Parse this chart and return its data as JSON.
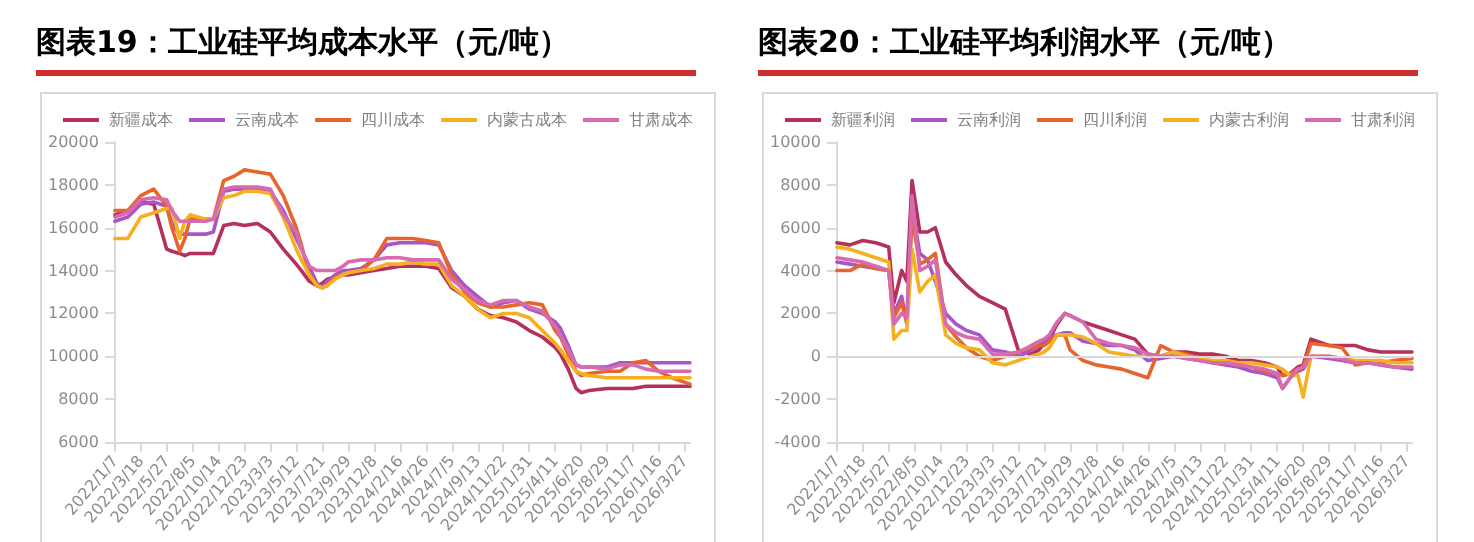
{
  "chart_data": [
    {
      "type": "line",
      "title": "图表19：工业硅平均成本水平（元/吨）",
      "legend": "top",
      "grid": false,
      "marker": "none",
      "line_style": "solid",
      "x": [
        "2022-01-07",
        "2022-02-11",
        "2022-03-18",
        "2022-04-22",
        "2022-05-27",
        "2022-06-10",
        "2022-07-01",
        "2022-07-15",
        "2022-07-29",
        "2022-08-19",
        "2022-09-09",
        "2022-09-30",
        "2022-10-28",
        "2022-11-25",
        "2022-12-23",
        "2023-01-27",
        "2023-03-03",
        "2023-04-07",
        "2023-05-12",
        "2023-05-26",
        "2023-06-16",
        "2023-07-07",
        "2023-07-21",
        "2023-08-04",
        "2023-08-25",
        "2023-09-15",
        "2023-09-29",
        "2023-11-03",
        "2023-12-08",
        "2024-01-12",
        "2024-02-16",
        "2024-03-22",
        "2024-04-26",
        "2024-05-31",
        "2024-07-05",
        "2024-08-09",
        "2024-09-13",
        "2024-10-18",
        "2024-11-22",
        "2024-12-27",
        "2025-01-31",
        "2025-03-07",
        "2025-04-11",
        "2025-04-25",
        "2025-05-16",
        "2025-06-06",
        "2025-06-20",
        "2025-07-11",
        "2025-08-29",
        "2025-10-03",
        "2025-11-07",
        "2025-12-12",
        "2026-01-16",
        "2026-02-20",
        "2026-04-10"
      ],
      "xlim": [
        "2022-01-07",
        "2026-04-10"
      ],
      "xticks": [
        {
          "value": "2022-01-07",
          "label": "2022/1/7"
        },
        {
          "value": "2022-03-18",
          "label": "2022/3/18"
        },
        {
          "value": "2022-05-27",
          "label": "2022/5/27"
        },
        {
          "value": "2022-08-05",
          "label": "2022/8/5"
        },
        {
          "value": "2022-10-14",
          "label": "2022/10/14"
        },
        {
          "value": "2022-12-23",
          "label": "2022/12/23"
        },
        {
          "value": "2023-03-03",
          "label": "2023/3/3"
        },
        {
          "value": "2023-05-12",
          "label": "2023/5/12"
        },
        {
          "value": "2023-07-21",
          "label": "2023/7/21"
        },
        {
          "value": "2023-09-29",
          "label": "2023/9/29"
        },
        {
          "value": "2023-12-08",
          "label": "2023/12/8"
        },
        {
          "value": "2024-02-16",
          "label": "2024/2/16"
        },
        {
          "value": "2024-04-26",
          "label": "2024/4/26"
        },
        {
          "value": "2024-07-05",
          "label": "2024/7/5"
        },
        {
          "value": "2024-09-13",
          "label": "2024/9/13"
        },
        {
          "value": "2024-11-22",
          "label": "2024/11/22"
        },
        {
          "value": "2025-01-31",
          "label": "2025/1/31"
        },
        {
          "value": "2025-04-11",
          "label": "2025/4/11"
        },
        {
          "value": "2025-06-20",
          "label": "2025/6/20"
        },
        {
          "value": "2025-08-29",
          "label": "2025/8/29"
        },
        {
          "value": "2025-11-07",
          "label": "2025/11/7"
        },
        {
          "value": "2026-01-16",
          "label": "2026/1/16"
        },
        {
          "value": "2026-03-27",
          "label": "2026/3/27"
        }
      ],
      "ylim": [
        6000,
        20000
      ],
      "yticks": [
        6000,
        8000,
        10000,
        12000,
        14000,
        16000,
        18000,
        20000
      ],
      "series": [
        {
          "name": "新疆成本",
          "color": "#b5305a",
          "values": [
            16600,
            16800,
            17200,
            17100,
            15000,
            14900,
            14800,
            14700,
            14800,
            14800,
            14800,
            14800,
            16100,
            16200,
            16100,
            16200,
            15800,
            15000,
            14300,
            14000,
            13500,
            13300,
            13400,
            13600,
            13700,
            13800,
            13800,
            13900,
            14000,
            14100,
            14200,
            14200,
            14200,
            14100,
            13200,
            12800,
            12200,
            11900,
            11800,
            11600,
            11200,
            10900,
            10400,
            10100,
            9400,
            8500,
            8300,
            8400,
            8500,
            8500,
            8500,
            8600,
            8600,
            8600,
            8600
          ]
        },
        {
          "name": "云南成本",
          "color": "#a855c8",
          "values": [
            16300,
            16500,
            17100,
            17200,
            17000,
            16200,
            15700,
            15700,
            15700,
            15700,
            15700,
            15800,
            17700,
            17800,
            17800,
            17800,
            17700,
            16800,
            15500,
            15000,
            14200,
            13400,
            13200,
            13500,
            13800,
            14000,
            14000,
            14100,
            14500,
            15200,
            15300,
            15300,
            15300,
            15200,
            14000,
            13300,
            12800,
            12300,
            12500,
            12600,
            12200,
            12000,
            11600,
            11300,
            10500,
            9600,
            9500,
            9500,
            9500,
            9700,
            9700,
            9700,
            9700,
            9700,
            9700
          ]
        },
        {
          "name": "四川成本",
          "color": "#e8642a",
          "values": [
            16800,
            16800,
            17500,
            17800,
            17000,
            16000,
            14900,
            15500,
            16400,
            16400,
            16400,
            16400,
            18200,
            18400,
            18700,
            18600,
            18500,
            17500,
            16000,
            15200,
            13800,
            13300,
            13200,
            13300,
            13700,
            13800,
            13900,
            14000,
            14500,
            15500,
            15500,
            15500,
            15400,
            15300,
            13800,
            13000,
            12500,
            12300,
            12300,
            12400,
            12500,
            12400,
            11200,
            10900,
            10100,
            9300,
            9100,
            9200,
            9300,
            9300,
            9700,
            9800,
            9300,
            9000,
            8700
          ]
        },
        {
          "name": "内蒙古成本",
          "color": "#f5b021",
          "values": [
            15500,
            15500,
            16500,
            16700,
            16900,
            16900,
            15500,
            16300,
            16600,
            16500,
            16400,
            16400,
            17400,
            17500,
            17700,
            17700,
            17600,
            16500,
            15000,
            14500,
            13800,
            13300,
            13200,
            13300,
            13600,
            13800,
            13900,
            14000,
            14100,
            14300,
            14300,
            14400,
            14300,
            14300,
            13300,
            12800,
            12200,
            11800,
            12000,
            12000,
            11800,
            11200,
            10600,
            10300,
            9800,
            9300,
            9200,
            9100,
            9000,
            9000,
            9000,
            9000,
            9000,
            9000,
            9000
          ]
        },
        {
          "name": "甘肃成本",
          "color": "#d76bb0",
          "values": [
            16500,
            16700,
            17300,
            17400,
            17300,
            16800,
            16300,
            16300,
            16300,
            16300,
            16300,
            16400,
            17800,
            17900,
            17900,
            17900,
            17800,
            16600,
            15800,
            15000,
            14200,
            14000,
            14000,
            14000,
            14000,
            14200,
            14400,
            14500,
            14500,
            14600,
            14600,
            14500,
            14500,
            14500,
            13600,
            13100,
            12600,
            12400,
            12600,
            12600,
            12300,
            12100,
            11400,
            11000,
            10300,
            9600,
            9500,
            9500,
            9400,
            9600,
            9600,
            9400,
            9300,
            9300,
            9300
          ]
        }
      ]
    },
    {
      "type": "line",
      "title": "图表20：工业硅平均利润水平（元/吨）",
      "legend": "top",
      "grid": false,
      "marker": "none",
      "line_style": "solid",
      "x": [
        "2022-01-07",
        "2022-02-11",
        "2022-03-18",
        "2022-04-22",
        "2022-05-27",
        "2022-06-10",
        "2022-07-01",
        "2022-07-15",
        "2022-07-29",
        "2022-08-19",
        "2022-09-09",
        "2022-09-30",
        "2022-10-28",
        "2022-11-25",
        "2022-12-23",
        "2023-01-27",
        "2023-03-03",
        "2023-04-07",
        "2023-05-12",
        "2023-05-26",
        "2023-06-16",
        "2023-07-07",
        "2023-07-21",
        "2023-08-04",
        "2023-08-25",
        "2023-09-15",
        "2023-09-29",
        "2023-11-03",
        "2023-12-08",
        "2024-01-12",
        "2024-02-16",
        "2024-03-22",
        "2024-04-26",
        "2024-05-31",
        "2024-07-05",
        "2024-08-09",
        "2024-09-13",
        "2024-10-18",
        "2024-11-22",
        "2024-12-27",
        "2025-01-31",
        "2025-03-07",
        "2025-04-11",
        "2025-04-25",
        "2025-05-16",
        "2025-06-06",
        "2025-06-20",
        "2025-07-11",
        "2025-08-29",
        "2025-10-03",
        "2025-11-07",
        "2025-12-12",
        "2026-01-16",
        "2026-02-20",
        "2026-04-10"
      ],
      "xlim": [
        "2022-01-07",
        "2026-04-10"
      ],
      "xticks": [
        {
          "value": "2022-01-07",
          "label": "2022/1/7"
        },
        {
          "value": "2022-03-18",
          "label": "2022/3/18"
        },
        {
          "value": "2022-05-27",
          "label": "2022/5/27"
        },
        {
          "value": "2022-08-05",
          "label": "2022/8/5"
        },
        {
          "value": "2022-10-14",
          "label": "2022/10/14"
        },
        {
          "value": "2022-12-23",
          "label": "2022/12/23"
        },
        {
          "value": "2023-03-03",
          "label": "2023/3/3"
        },
        {
          "value": "2023-05-12",
          "label": "2023/5/12"
        },
        {
          "value": "2023-07-21",
          "label": "2023/7/21"
        },
        {
          "value": "2023-09-29",
          "label": "2023/9/29"
        },
        {
          "value": "2023-12-08",
          "label": "2023/12/8"
        },
        {
          "value": "2024-02-16",
          "label": "2024/2/16"
        },
        {
          "value": "2024-04-26",
          "label": "2024/4/26"
        },
        {
          "value": "2024-07-05",
          "label": "2024/7/5"
        },
        {
          "value": "2024-09-13",
          "label": "2024/9/13"
        },
        {
          "value": "2024-11-22",
          "label": "2024/11/22"
        },
        {
          "value": "2025-01-31",
          "label": "2025/1/31"
        },
        {
          "value": "2025-04-11",
          "label": "2025/4/11"
        },
        {
          "value": "2025-06-20",
          "label": "2025/6/20"
        },
        {
          "value": "2025-08-29",
          "label": "2025/8/29"
        },
        {
          "value": "2025-11-07",
          "label": "2025/11/7"
        },
        {
          "value": "2026-01-16",
          "label": "2026/1/16"
        },
        {
          "value": "2026-03-27",
          "label": "2026/3/27"
        }
      ],
      "ylim": [
        -4000,
        10000
      ],
      "yticks": [
        -4000,
        -2000,
        0,
        2000,
        4000,
        6000,
        8000,
        10000
      ],
      "ref_lines": [
        {
          "axis": "y",
          "value": 0,
          "color": "#d9d9d9"
        }
      ],
      "series": [
        {
          "name": "新疆利润",
          "color": "#b5305a",
          "values": [
            5300,
            5200,
            5400,
            5300,
            5100,
            2500,
            4000,
            3500,
            8200,
            5800,
            5800,
            6000,
            4400,
            3800,
            3300,
            2800,
            2500,
            2200,
            300,
            200,
            100,
            300,
            600,
            800,
            1500,
            2000,
            1900,
            1600,
            1400,
            1200,
            1000,
            800,
            100,
            0,
            200,
            200,
            100,
            100,
            0,
            -200,
            -200,
            -300,
            -500,
            -900,
            -800,
            -500,
            -400,
            800,
            500,
            500,
            500,
            300,
            200,
            200,
            200
          ]
        },
        {
          "name": "云南利润",
          "color": "#a855c8",
          "values": [
            4400,
            4300,
            4200,
            4100,
            4000,
            2000,
            2800,
            1500,
            7000,
            4800,
            4500,
            3500,
            2000,
            1500,
            1200,
            1000,
            300,
            200,
            0,
            100,
            300,
            500,
            700,
            900,
            1000,
            1100,
            1100,
            700,
            600,
            500,
            500,
            300,
            -200,
            -100,
            0,
            -100,
            -200,
            -300,
            -400,
            -500,
            -700,
            -800,
            -1000,
            -1500,
            -1000,
            -700,
            -600,
            0,
            -100,
            -200,
            -300,
            -300,
            -400,
            -500,
            -600
          ]
        },
        {
          "name": "四川利润",
          "color": "#e8642a",
          "values": [
            4000,
            4000,
            4300,
            4100,
            4000,
            1800,
            2500,
            1600,
            6500,
            4300,
            4500,
            4800,
            1500,
            900,
            400,
            0,
            -200,
            0,
            200,
            300,
            400,
            500,
            500,
            700,
            1000,
            1000,
            300,
            -200,
            -400,
            -500,
            -600,
            -800,
            -1000,
            500,
            200,
            100,
            -100,
            -300,
            -300,
            -400,
            -500,
            -700,
            -800,
            -900,
            -800,
            -600,
            -500,
            600,
            500,
            400,
            -400,
            -300,
            -300,
            -200,
            -100
          ]
        },
        {
          "name": "内蒙古利润",
          "color": "#f5b021",
          "values": [
            5100,
            5000,
            4800,
            4600,
            4400,
            800,
            1200,
            1200,
            5000,
            3000,
            3500,
            3800,
            1000,
            600,
            400,
            300,
            -300,
            -400,
            -200,
            -100,
            0,
            100,
            200,
            400,
            1000,
            1000,
            1000,
            900,
            600,
            200,
            100,
            0,
            0,
            0,
            200,
            0,
            -100,
            -200,
            -200,
            -300,
            -300,
            -400,
            -500,
            -600,
            -900,
            -900,
            -1900,
            0,
            0,
            -100,
            -200,
            -200,
            -200,
            -300,
            -300
          ]
        },
        {
          "name": "甘肃利润",
          "color": "#d76bb0",
          "values": [
            4600,
            4500,
            4400,
            4200,
            4000,
            1500,
            2000,
            1800,
            7500,
            4000,
            4200,
            4500,
            1500,
            1100,
            900,
            800,
            100,
            100,
            200,
            300,
            500,
            700,
            800,
            1000,
            1600,
            2000,
            1900,
            1600,
            800,
            600,
            500,
            400,
            100,
            0,
            0,
            -100,
            -200,
            -300,
            -300,
            -400,
            -500,
            -600,
            -800,
            -1500,
            -1000,
            -600,
            -500,
            0,
            0,
            -100,
            -300,
            -300,
            -400,
            -500,
            -500
          ]
        }
      ]
    }
  ]
}
